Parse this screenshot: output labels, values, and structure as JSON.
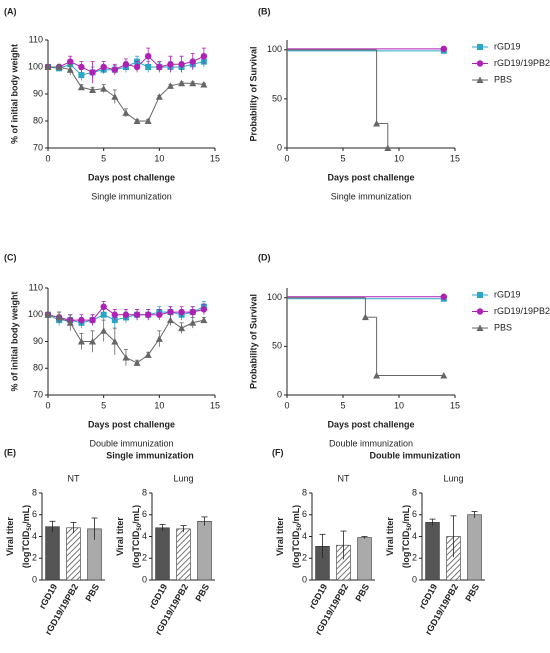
{
  "chart_data": [
    {
      "type": "line",
      "panel": "(A)",
      "xlabel": "Days post challenge",
      "subtitle": "Single immunization",
      "ylabel": "% of initial body weight",
      "x": [
        0,
        1,
        2,
        3,
        4,
        5,
        6,
        7,
        8,
        9,
        10,
        11,
        12,
        13,
        14
      ],
      "xlim": [
        0,
        15
      ],
      "xticks": [
        0,
        5,
        10,
        15
      ],
      "ylim": [
        70,
        110
      ],
      "yticks": [
        70,
        80,
        90,
        100,
        110
      ],
      "series": [
        {
          "name": "rGD19",
          "color": "#2ba6c6",
          "marker": "square",
          "values": [
            100,
            99.5,
            101,
            97,
            98,
            99,
            99,
            100,
            102,
            100,
            100,
            100,
            100,
            101,
            102
          ],
          "errors": [
            0.5,
            1,
            1.5,
            2,
            2,
            1.5,
            1.5,
            2,
            2,
            2,
            1.5,
            2,
            2,
            2,
            2
          ]
        },
        {
          "name": "rGD19/19PB2",
          "color": "#b020b4",
          "marker": "circle",
          "values": [
            100,
            100,
            102,
            100,
            98,
            100,
            99,
            101,
            100,
            104,
            100,
            101,
            101,
            102,
            104
          ],
          "errors": [
            0.5,
            1,
            2,
            2,
            4,
            2,
            2,
            2,
            2,
            3,
            2,
            3,
            3,
            3,
            3
          ]
        },
        {
          "name": "PBS",
          "color": "#666666",
          "marker": "triangle",
          "values": [
            100,
            100,
            99,
            92.5,
            91.5,
            92,
            89,
            83,
            80,
            80,
            89,
            93,
            94,
            94,
            93.5
          ],
          "errors": [
            0.5,
            1,
            2,
            1,
            1,
            1.5,
            2.5,
            1.5,
            0.5,
            0.5,
            0.5,
            0.5,
            0.5,
            0.5,
            0.5
          ]
        }
      ]
    },
    {
      "type": "step",
      "panel": "(B)",
      "xlabel": "Days post challenge",
      "subtitle": "Single immunization",
      "ylabel": "Probability of Survival",
      "xlim": [
        0,
        15
      ],
      "xticks": [
        0,
        5,
        10,
        15
      ],
      "ylim": [
        0,
        110
      ],
      "yticks": [
        0,
        50,
        100
      ],
      "legend": "right",
      "series": [
        {
          "name": "rGD19",
          "color": "#2ba6c6",
          "marker": "square",
          "x": [
            0,
            14
          ],
          "values": [
            100,
            100
          ]
        },
        {
          "name": "rGD19/19PB2",
          "color": "#b020b4",
          "marker": "circle",
          "x": [
            0,
            14
          ],
          "values": [
            100,
            100
          ]
        },
        {
          "name": "PBS",
          "color": "#666666",
          "marker": "triangle",
          "x": [
            0,
            8,
            9
          ],
          "values": [
            100,
            25,
            0
          ]
        }
      ]
    },
    {
      "type": "line",
      "panel": "(C)",
      "xlabel": "Days post challenge",
      "subtitle": "Double immunization",
      "ylabel": "% of initial body weight",
      "x": [
        0,
        1,
        2,
        3,
        4,
        5,
        6,
        7,
        8,
        9,
        10,
        11,
        12,
        13,
        14
      ],
      "xlim": [
        0,
        15
      ],
      "xticks": [
        0,
        5,
        10,
        15
      ],
      "ylim": [
        70,
        110
      ],
      "yticks": [
        70,
        80,
        90,
        100,
        110
      ],
      "series": [
        {
          "name": "rGD19",
          "color": "#2ba6c6",
          "marker": "square",
          "values": [
            100,
            98,
            98,
            97,
            98,
            100,
            98,
            99,
            100,
            100,
            101,
            101,
            100,
            101,
            103
          ],
          "errors": [
            0.5,
            2,
            2,
            2,
            2,
            2,
            3,
            2,
            2,
            2,
            2,
            2,
            2,
            2,
            2
          ]
        },
        {
          "name": "rGD19/19PB2",
          "color": "#b020b4",
          "marker": "circle",
          "values": [
            100,
            99,
            98,
            98,
            98,
            103,
            100,
            100,
            100,
            100,
            100,
            101,
            101,
            101,
            102
          ],
          "errors": [
            0.5,
            2,
            2,
            2,
            2,
            2,
            2,
            2,
            2,
            2,
            2,
            2,
            2,
            2,
            2
          ]
        },
        {
          "name": "PBS",
          "color": "#666666",
          "marker": "triangle",
          "values": [
            100,
            99,
            97,
            90,
            90,
            94,
            90,
            84,
            82,
            85,
            91,
            98,
            95,
            97,
            98
          ],
          "errors": [
            0.5,
            2,
            3,
            3,
            4,
            4,
            5,
            3,
            1,
            1,
            3,
            2,
            2,
            2,
            1
          ]
        }
      ]
    },
    {
      "type": "step",
      "panel": "(D)",
      "xlabel": "Days post challenge",
      "subtitle": "Double immunization",
      "ylabel": "Probability of Survival",
      "xlim": [
        0,
        15
      ],
      "xticks": [
        0,
        5,
        10,
        15
      ],
      "ylim": [
        0,
        110
      ],
      "yticks": [
        0,
        50,
        100
      ],
      "legend": "right",
      "series": [
        {
          "name": "rGD19",
          "color": "#2ba6c6",
          "marker": "square",
          "x": [
            0,
            14
          ],
          "values": [
            100,
            100
          ]
        },
        {
          "name": "rGD19/19PB2",
          "color": "#b020b4",
          "marker": "circle",
          "x": [
            0,
            14
          ],
          "values": [
            100,
            100
          ]
        },
        {
          "name": "PBS",
          "color": "#666666",
          "marker": "triangle",
          "x": [
            0,
            7,
            8,
            14
          ],
          "values": [
            100,
            80,
            20,
            20
          ]
        }
      ]
    },
    {
      "type": "bar",
      "panel": "(E)",
      "heading": "Single immunization",
      "title": "NT",
      "ylabel": "Viral titer",
      "ylabel_unit": [
        "(logTCID",
        "50",
        "/mL)"
      ],
      "categories": [
        "rGD19",
        "rGD19/19PB2",
        "PBS"
      ],
      "values": [
        4.9,
        4.8,
        4.7
      ],
      "errors": [
        0.5,
        0.5,
        1.0
      ],
      "colors": [
        "#555555",
        "#dddddd",
        "#aaaaaa"
      ],
      "hatched": [
        false,
        true,
        false
      ],
      "ylim": [
        0,
        8
      ],
      "yticks": [
        0,
        2,
        4,
        6,
        8
      ]
    },
    {
      "type": "bar",
      "title": "Lung",
      "ylabel": "Viral titer",
      "ylabel_unit": [
        "(logTCID",
        "50",
        "/mL)"
      ],
      "categories": [
        "rGD19",
        "rGD19/19PB2",
        "PBS"
      ],
      "values": [
        4.8,
        4.7,
        5.4
      ],
      "errors": [
        0.3,
        0.3,
        0.4
      ],
      "colors": [
        "#555555",
        "#dddddd",
        "#aaaaaa"
      ],
      "hatched": [
        false,
        true,
        false
      ],
      "ylim": [
        0,
        8
      ],
      "yticks": [
        0,
        2,
        4,
        6,
        8
      ]
    },
    {
      "type": "bar",
      "panel": "(F)",
      "heading": "Double immunization",
      "title": "NT",
      "ylabel": "Viral titer",
      "ylabel_unit": [
        "(logTCID",
        "50",
        "/mL)"
      ],
      "categories": [
        "rGD19",
        "rGD19/19PB2",
        "PBS"
      ],
      "values": [
        3.1,
        3.2,
        3.9
      ],
      "errors": [
        1.1,
        1.3,
        0.1
      ],
      "colors": [
        "#555555",
        "#dddddd",
        "#aaaaaa"
      ],
      "hatched": [
        false,
        true,
        false
      ],
      "ylim": [
        0,
        8
      ],
      "yticks": [
        0,
        2,
        4,
        6,
        8
      ]
    },
    {
      "type": "bar",
      "title": "Lung",
      "ylabel": "Viral titer",
      "ylabel_unit": [
        "(logTCID",
        "50",
        "/mL)"
      ],
      "categories": [
        "rGD19",
        "rGD19/19PB2",
        "PBS"
      ],
      "values": [
        5.3,
        4.0,
        6.0
      ],
      "errors": [
        0.3,
        1.9,
        0.3
      ],
      "colors": [
        "#555555",
        "#dddddd",
        "#aaaaaa"
      ],
      "hatched": [
        false,
        true,
        false
      ],
      "ylim": [
        0,
        8
      ],
      "yticks": [
        0,
        2,
        4,
        6,
        8
      ]
    }
  ]
}
